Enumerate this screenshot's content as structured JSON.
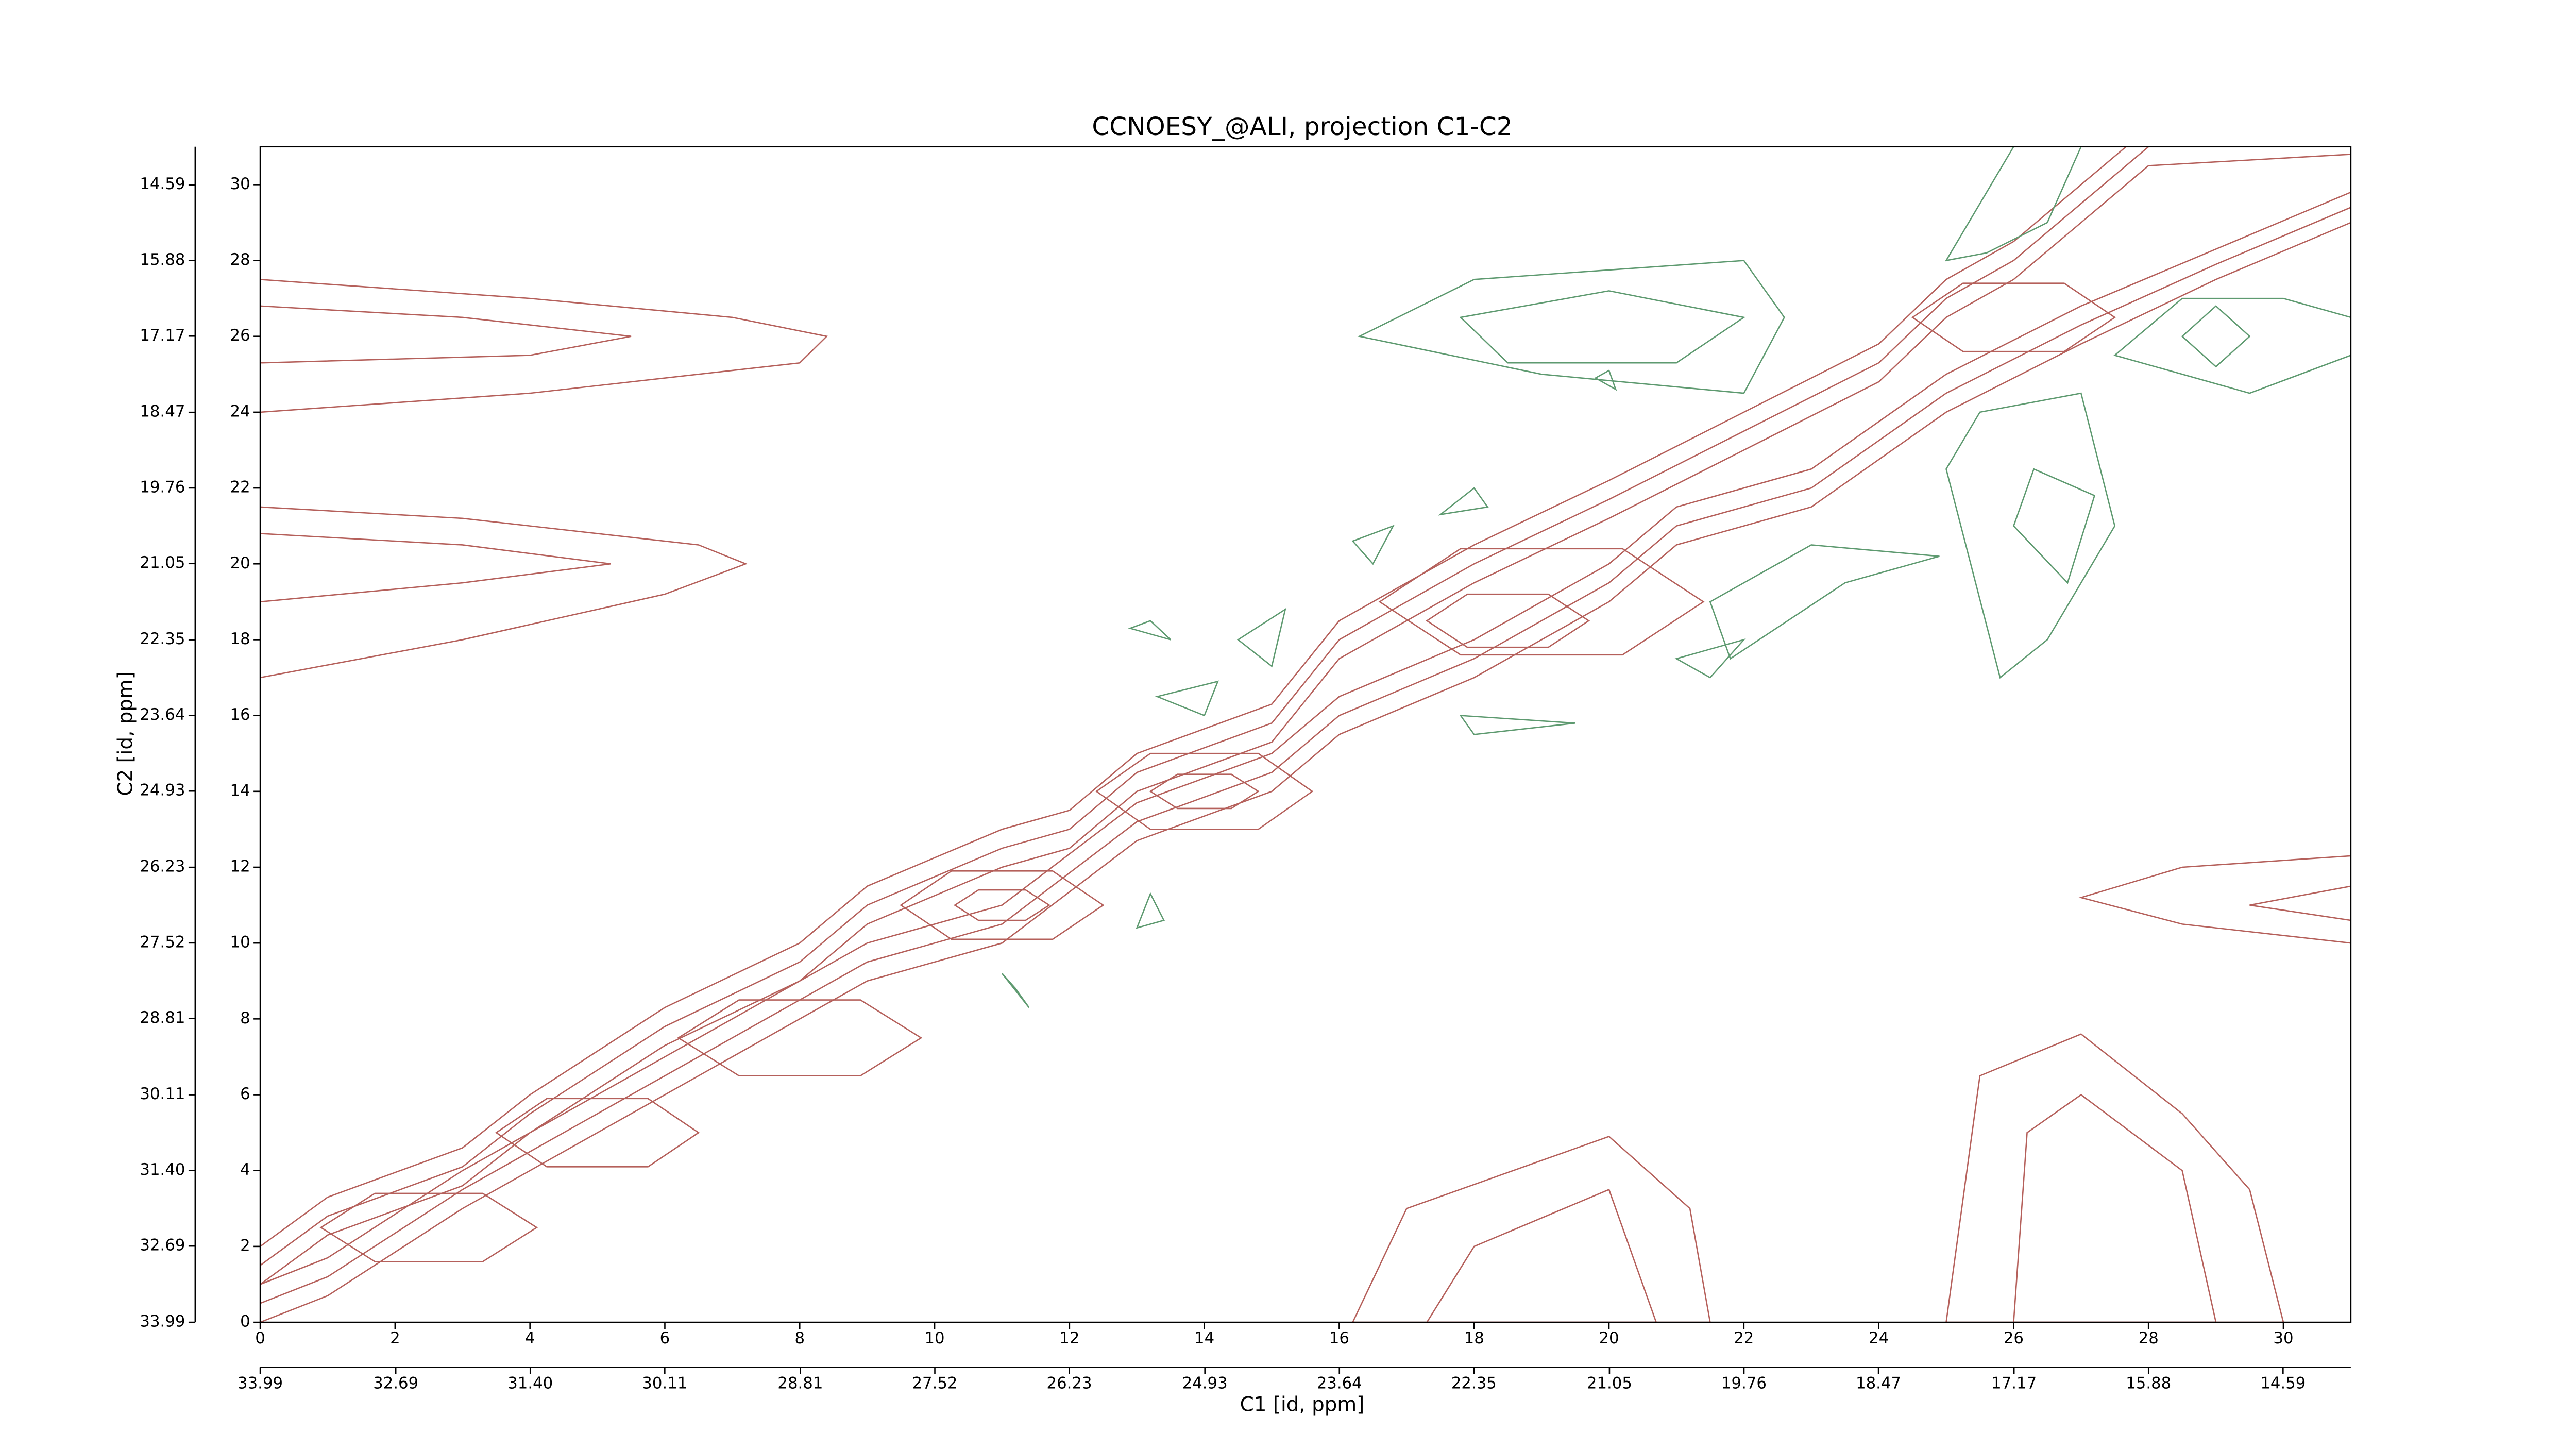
{
  "chart_data": {
    "type": "contour",
    "title": "CCNOESY_@ALI, projection C1-C2",
    "xlabel": "C1 [id, ppm]",
    "ylabel": "C2 [id, ppm]",
    "xlim": [
      0,
      31
    ],
    "ylim": [
      0,
      31
    ],
    "xticks": [
      0,
      2,
      4,
      6,
      8,
      10,
      12,
      14,
      16,
      18,
      20,
      22,
      24,
      26,
      28,
      30
    ],
    "yticks": [
      0,
      2,
      4,
      6,
      8,
      10,
      12,
      14,
      16,
      18,
      20,
      22,
      24,
      26,
      28,
      30
    ],
    "x2lim": [
      33.99,
      13.94
    ],
    "y2lim": [
      33.99,
      13.94
    ],
    "x2ticks": [
      33.99,
      32.69,
      {
        "value": 31.4,
        "label": "31.40"
      },
      30.11,
      28.81,
      27.52,
      26.23,
      24.93,
      23.64,
      22.35,
      21.05,
      19.76,
      18.47,
      17.17,
      15.88,
      14.59
    ],
    "y2ticks": [
      33.99,
      32.69,
      {
        "value": 31.4,
        "label": "31.40"
      },
      30.11,
      28.81,
      27.52,
      26.23,
      24.93,
      23.64,
      22.35,
      21.05,
      19.76,
      18.47,
      17.17,
      15.88,
      14.59
    ],
    "contours": [
      {
        "color": "#b5605b",
        "x": [
          0,
          1,
          3,
          4,
          6,
          8,
          9,
          11,
          12,
          13,
          15,
          16,
          18,
          20,
          22,
          24,
          25,
          26,
          27,
          28,
          31,
          31,
          29,
          27,
          25,
          23,
          21,
          20,
          18,
          16,
          15,
          13,
          11,
          9,
          7,
          5,
          3,
          1,
          0
        ],
        "y": [
          2,
          3.3,
          4.6,
          6,
          8.3,
          10,
          11.5,
          13,
          13.5,
          15,
          16.3,
          18.5,
          20.5,
          22.2,
          24,
          25.8,
          27.5,
          28.5,
          30,
          31.5,
          31.5,
          29,
          27.5,
          25.8,
          24,
          21.5,
          20.5,
          19,
          17,
          15.5,
          14,
          12.7,
          10,
          9,
          7,
          5,
          3,
          0.7,
          0
        ]
      },
      {
        "color": "#b5605b",
        "x": [
          0,
          1,
          3,
          4,
          6,
          8,
          9,
          11,
          12,
          13,
          15,
          16,
          18,
          20,
          22,
          24,
          25,
          26,
          27,
          28,
          31,
          31,
          29,
          27,
          25,
          23,
          21,
          20,
          18,
          16,
          15,
          13,
          11,
          9,
          7,
          5,
          3,
          1,
          0
        ],
        "y": [
          1.5,
          2.8,
          4.1,
          5.5,
          7.8,
          9.5,
          11,
          12.5,
          13,
          14.5,
          15.8,
          18,
          20,
          21.7,
          23.5,
          25.3,
          27,
          28,
          29.5,
          31,
          31.3,
          29.4,
          27.9,
          26.3,
          24.5,
          22,
          21,
          19.5,
          17.5,
          16,
          14.5,
          13.2,
          10.5,
          9.5,
          7.5,
          5.5,
          3.5,
          1.2,
          0.5
        ]
      },
      {
        "color": "#b5605b",
        "x": [
          0,
          1,
          3,
          4,
          6,
          8,
          9,
          11,
          12,
          13,
          15,
          16,
          18,
          20,
          22,
          24,
          25,
          26,
          27,
          28,
          31,
          31,
          29,
          27,
          25,
          23,
          21,
          20,
          18,
          16,
          15,
          13,
          11,
          9,
          7,
          5,
          3,
          1,
          0
        ],
        "y": [
          1,
          2.3,
          3.6,
          5,
          7.3,
          9,
          10.5,
          12,
          12.5,
          14,
          15.3,
          17.5,
          19.5,
          21.2,
          23,
          24.8,
          26.5,
          27.5,
          29,
          30.5,
          30.8,
          29.8,
          28.3,
          26.8,
          25,
          22.5,
          21.5,
          20,
          18,
          16.5,
          15,
          13.7,
          11,
          10,
          8,
          6,
          4,
          1.7,
          1
        ]
      },
      {
        "color": "#b5605b",
        "x": [
          0.9,
          1.7,
          3.3,
          4.1,
          3.3,
          1.7
        ],
        "y": [
          2.5,
          3.4,
          3.4,
          2.5,
          1.6,
          1.6
        ]
      },
      {
        "color": "#b5605b",
        "x": [
          3.5,
          4.25,
          5.75,
          6.5,
          5.75,
          4.25
        ],
        "y": [
          5,
          5.9,
          5.9,
          5,
          4.1,
          4.1
        ]
      },
      {
        "color": "#b5605b",
        "x": [
          6.2,
          7.1,
          8.9,
          9.8,
          8.9,
          7.1
        ],
        "y": [
          7.5,
          8.5,
          8.5,
          7.5,
          6.5,
          6.5
        ]
      },
      {
        "color": "#b5605b",
        "x": [
          9.5,
          10.25,
          11.75,
          12.5,
          11.75,
          10.25
        ],
        "y": [
          11,
          11.9,
          11.9,
          11,
          10.1,
          10.1
        ]
      },
      {
        "color": "#b5605b",
        "x": [
          10.3,
          10.65,
          11.35,
          11.7,
          11.35,
          10.65
        ],
        "y": [
          11,
          11.4,
          11.4,
          11,
          10.6,
          10.6
        ]
      },
      {
        "color": "#b5605b",
        "x": [
          12.4,
          13.2,
          14.8,
          15.6,
          14.8,
          13.2
        ],
        "y": [
          14,
          15,
          15,
          14,
          13,
          13
        ]
      },
      {
        "color": "#b5605b",
        "x": [
          13.2,
          13.6,
          14.4,
          14.8,
          14.4,
          13.6
        ],
        "y": [
          14,
          14.45,
          14.45,
          14,
          13.55,
          13.55
        ]
      },
      {
        "color": "#b5605b",
        "x": [
          16.6,
          17.8,
          20.2,
          21.4,
          20.2,
          17.8
        ],
        "y": [
          19,
          20.4,
          20.4,
          19,
          17.6,
          17.6
        ]
      },
      {
        "color": "#b5605b",
        "x": [
          17.3,
          17.9,
          19.1,
          19.7,
          19.1,
          17.9
        ],
        "y": [
          18.5,
          19.2,
          19.2,
          18.5,
          17.8,
          17.8
        ]
      },
      {
        "color": "#b5605b",
        "x": [
          24.5,
          25.25,
          26.75,
          27.5,
          26.75,
          25.25
        ],
        "y": [
          26.5,
          27.4,
          27.4,
          26.5,
          25.6,
          25.6
        ]
      },
      {
        "color": "#b5605b",
        "x": [
          0,
          4,
          7,
          8.4,
          8,
          4,
          0
        ],
        "y": [
          27.5,
          27,
          26.5,
          26,
          25.3,
          24.5,
          24
        ]
      },
      {
        "color": "#b5605b",
        "x": [
          0,
          3,
          5.5,
          4,
          0
        ],
        "y": [
          26.8,
          26.5,
          26,
          25.5,
          25.3
        ]
      },
      {
        "color": "#b5605b",
        "x": [
          0,
          3,
          6.5,
          7.2,
          6,
          3,
          0
        ],
        "y": [
          21.5,
          21.2,
          20.5,
          20,
          19.2,
          18,
          17
        ]
      },
      {
        "color": "#b5605b",
        "x": [
          0,
          3,
          5.2,
          3,
          0
        ],
        "y": [
          20.8,
          20.5,
          20,
          19.5,
          19
        ]
      },
      {
        "color": "#b5605b",
        "x": [
          31,
          28.5,
          27,
          28.5,
          31
        ],
        "y": [
          12.3,
          12,
          11.2,
          10.5,
          10
        ]
      },
      {
        "color": "#b5605b",
        "x": [
          31,
          29.5,
          31
        ],
        "y": [
          11.5,
          11,
          10.6
        ]
      },
      {
        "color": "#b5605b",
        "x": [
          16.2,
          17,
          20,
          21.2,
          21.5
        ],
        "y": [
          0,
          3,
          4.9,
          3,
          0
        ]
      },
      {
        "color": "#b5605b",
        "x": [
          17.3,
          18,
          20,
          20.7
        ],
        "y": [
          0,
          2,
          3.5,
          0
        ]
      },
      {
        "color": "#b5605b",
        "x": [
          25,
          25.5,
          27,
          28.5,
          29.5,
          30
        ],
        "y": [
          0,
          6.5,
          7.6,
          5.5,
          3.5,
          0
        ]
      },
      {
        "color": "#b5605b",
        "x": [
          26,
          26.2,
          27,
          28.5,
          29
        ],
        "y": [
          0,
          5,
          6,
          4,
          0
        ]
      },
      {
        "color": "#5e9a70",
        "x": [
          16.3,
          18,
          22,
          22.6,
          22,
          19
        ],
        "y": [
          26,
          27.5,
          28,
          26.5,
          24.5,
          25
        ]
      },
      {
        "color": "#5e9a70",
        "x": [
          17.8,
          20,
          22,
          21,
          18.5
        ],
        "y": [
          26.5,
          27.2,
          26.5,
          25.3,
          25.3
        ]
      },
      {
        "color": "#5e9a70",
        "x": [
          25,
          26,
          27,
          26.5,
          25.6
        ],
        "y": [
          28,
          31,
          31,
          29,
          28.2
        ]
      },
      {
        "color": "#5e9a70",
        "x": [
          27.5,
          28.5,
          30,
          31,
          31,
          29.5,
          28.5
        ],
        "y": [
          25.5,
          27,
          27,
          26.5,
          25.5,
          24.5,
          25
        ]
      },
      {
        "color": "#5e9a70",
        "x": [
          28.5,
          29,
          29.5,
          29
        ],
        "y": [
          26,
          26.8,
          26,
          25.2
        ]
      },
      {
        "color": "#5e9a70",
        "x": [
          25,
          25.5,
          27,
          27.5,
          26.5,
          25.8
        ],
        "y": [
          22.5,
          24,
          24.5,
          21,
          18,
          17
        ]
      },
      {
        "color": "#5e9a70",
        "x": [
          26,
          26.3,
          27.2,
          26.8
        ],
        "y": [
          21,
          22.5,
          21.8,
          19.5
        ]
      },
      {
        "color": "#5e9a70",
        "x": [
          21.5,
          23,
          24.9,
          23.5,
          21.8
        ],
        "y": [
          19,
          20.5,
          20.2,
          19.5,
          17.5
        ]
      },
      {
        "color": "#5e9a70",
        "x": [
          21,
          22,
          21.5
        ],
        "y": [
          17.5,
          18,
          17
        ]
      },
      {
        "color": "#5e9a70",
        "x": [
          17.8,
          19.5,
          18
        ],
        "y": [
          16,
          15.8,
          15.5
        ]
      },
      {
        "color": "#5e9a70",
        "x": [
          13.3,
          14.2,
          14
        ],
        "y": [
          16.5,
          16.9,
          16
        ]
      },
      {
        "color": "#5e9a70",
        "x": [
          14.5,
          15.2,
          15
        ],
        "y": [
          18,
          18.8,
          17.3
        ]
      },
      {
        "color": "#5e9a70",
        "x": [
          16.2,
          16.8,
          16.5
        ],
        "y": [
          20.6,
          21,
          20
        ]
      },
      {
        "color": "#5e9a70",
        "x": [
          17.5,
          18,
          18.2
        ],
        "y": [
          21.3,
          22,
          21.5
        ]
      },
      {
        "color": "#5e9a70",
        "x": [
          12.9,
          13.2,
          13.5
        ],
        "y": [
          18.3,
          18.5,
          18
        ]
      },
      {
        "color": "#5e9a70",
        "x": [
          13,
          13.2,
          13.4
        ],
        "y": [
          10.4,
          11.3,
          10.6
        ]
      },
      {
        "color": "#5e9a70",
        "x": [
          11,
          11.2,
          11.4
        ],
        "y": [
          9.2,
          8.8,
          8.3
        ]
      },
      {
        "color": "#5e9a70",
        "x": [
          19.8,
          20,
          20.1
        ],
        "y": [
          24.9,
          25.1,
          24.6
        ]
      }
    ]
  }
}
